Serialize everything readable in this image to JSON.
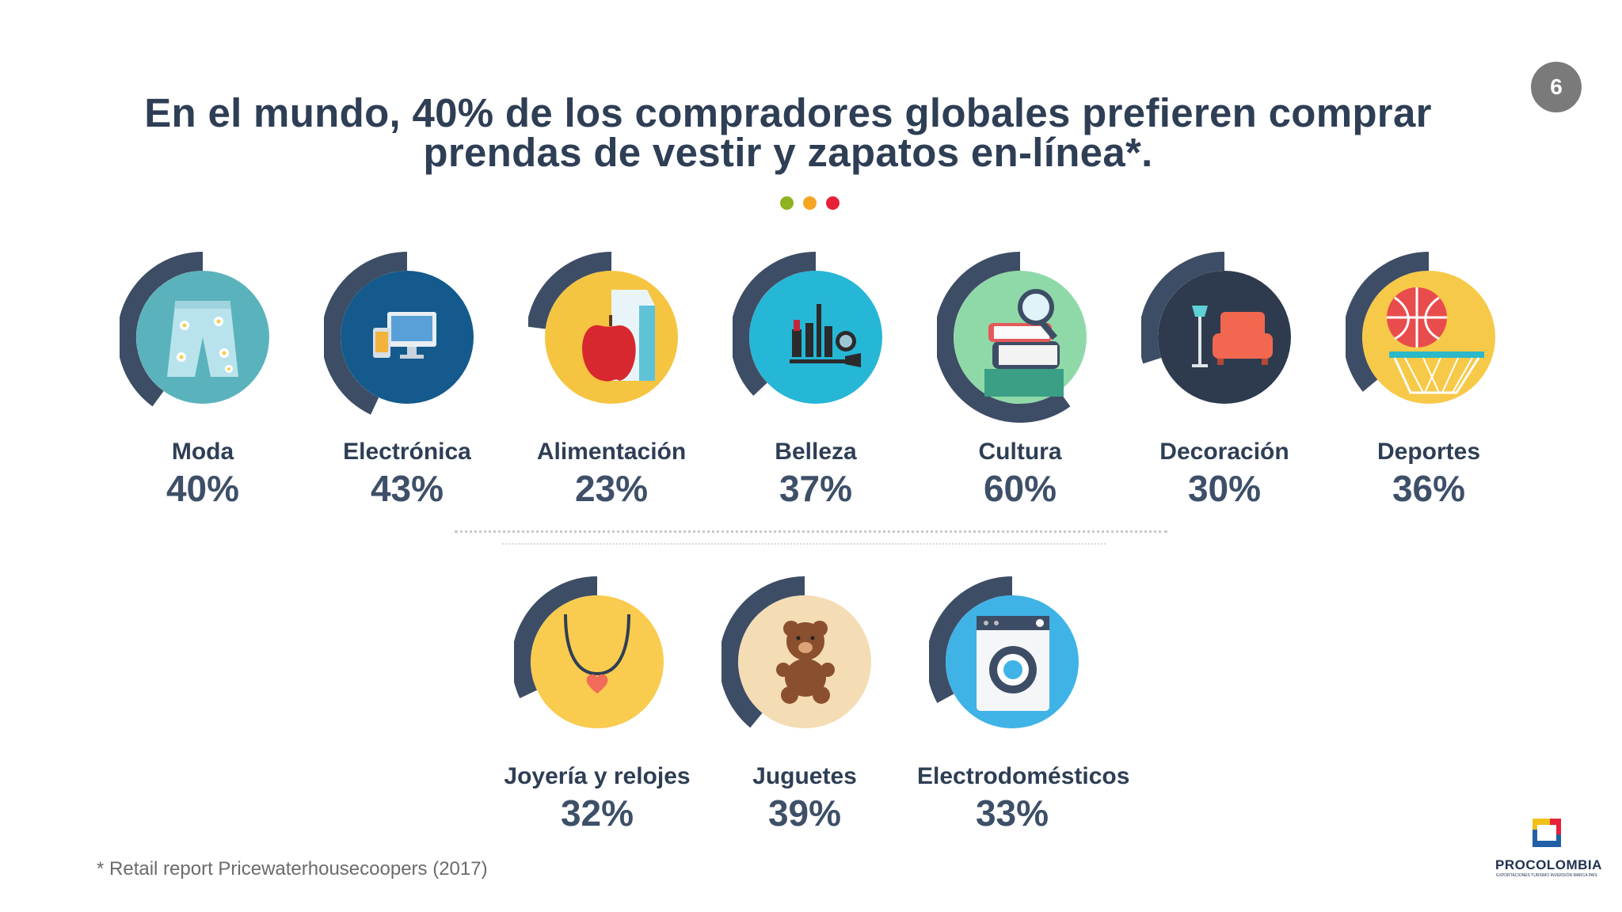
{
  "page_number": "6",
  "title_line1": "En el mundo, 40% de los compradores globales prefieren comprar",
  "title_line2": "prendas de vestir y zapatos en-línea*.",
  "accent_dots": [
    "#8db31e",
    "#f5a623",
    "#e8203a"
  ],
  "categories": [
    {
      "name": "Moda",
      "percent": "40%",
      "value": 40,
      "icon": "shorts-icon",
      "bg": "#5ab3bc"
    },
    {
      "name": "Electrónica",
      "percent": "43%",
      "value": 43,
      "icon": "computer-icon",
      "bg": "#145a8c"
    },
    {
      "name": "Alimentación",
      "percent": "23%",
      "value": 23,
      "icon": "groceries-icon",
      "bg": "#f5c542"
    },
    {
      "name": "Belleza",
      "percent": "37%",
      "value": 37,
      "icon": "makeup-icon",
      "bg": "#26b6d6"
    },
    {
      "name": "Cultura",
      "percent": "60%",
      "value": 60,
      "icon": "books-icon",
      "bg": "#8fd9a8"
    },
    {
      "name": "Decoración",
      "percent": "30%",
      "value": 30,
      "icon": "sofa-icon",
      "bg": "#2e3b4e"
    },
    {
      "name": "Deportes",
      "percent": "36%",
      "value": 36,
      "icon": "basketball-icon",
      "bg": "#f7c948"
    },
    {
      "name": "Joyería y relojes",
      "percent": "32%",
      "value": 32,
      "icon": "necklace-icon",
      "bg": "#f9cb4f"
    },
    {
      "name": "Juguetes",
      "percent": "39%",
      "value": 39,
      "icon": "teddy-bear-icon",
      "bg": "#f4dcb4"
    },
    {
      "name": "Electrodomésticos",
      "percent": "33%",
      "value": 33,
      "icon": "washing-machine-icon",
      "bg": "#3fb3e6"
    }
  ],
  "footnote": "* Retail report Pricewaterhousecoopers (2017)",
  "logo": {
    "word": "PROCOLOMBIA",
    "tagline": "EXPORTACIONES TURISMO INVERSIÓN MARCA PAÍS"
  }
}
